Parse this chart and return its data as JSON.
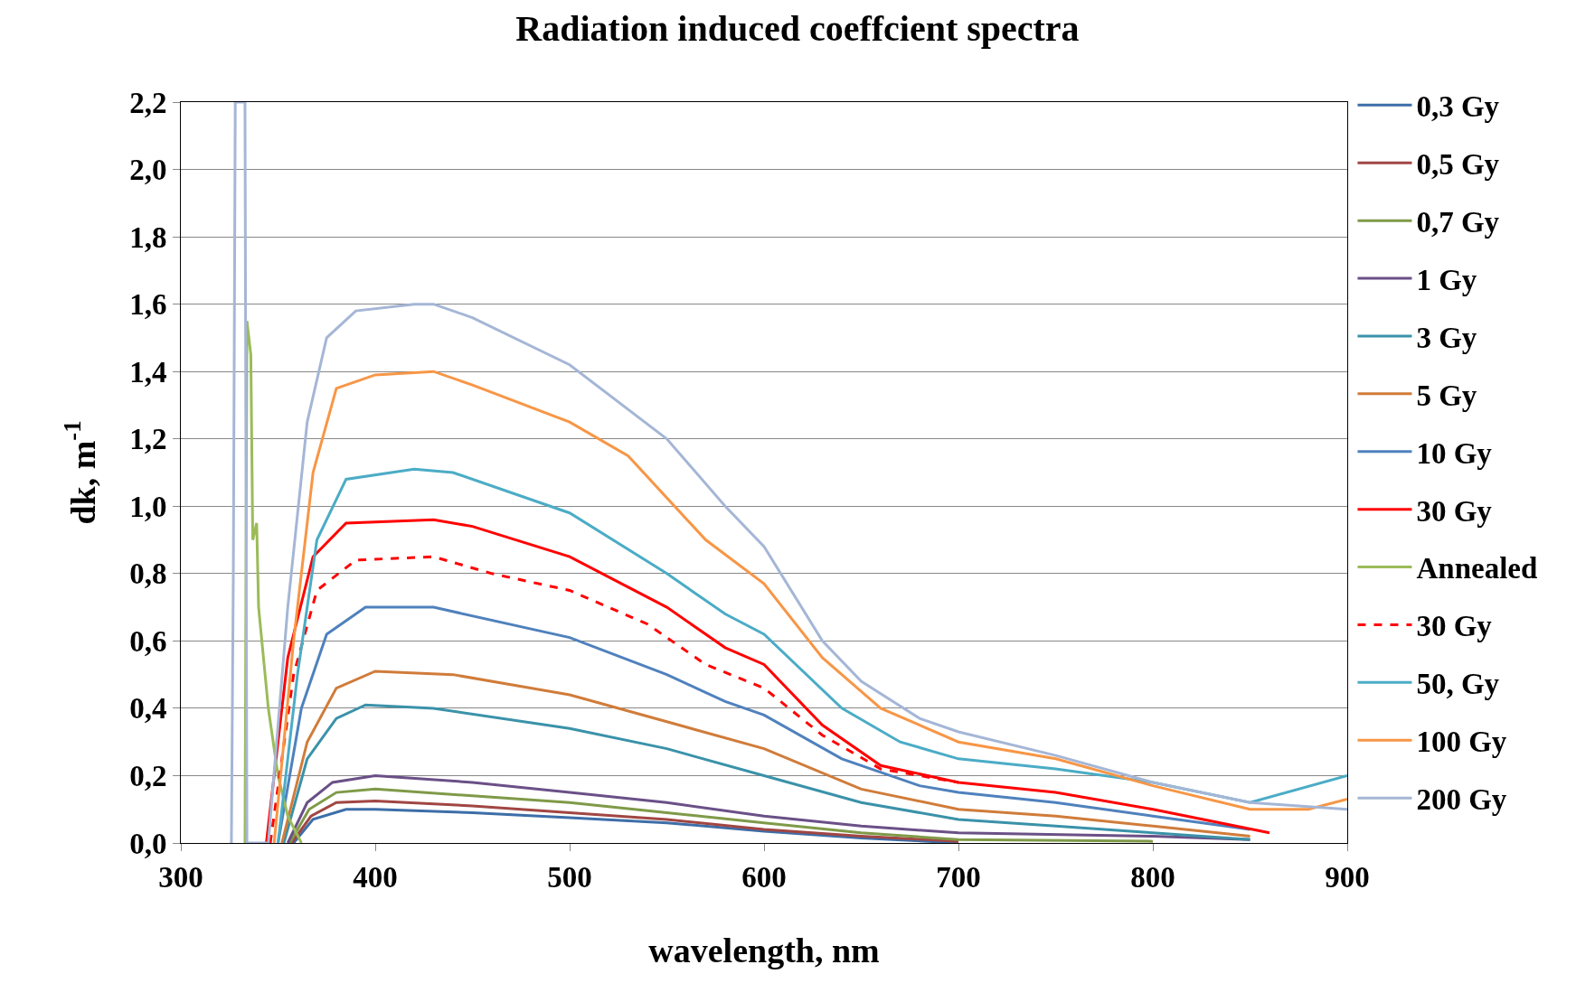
{
  "chart_data": {
    "type": "line",
    "title": "Radiation induced coeffcient spectra",
    "xlabel": "wavelength, nm",
    "ylabel": "dk, m$^{-1}$",
    "xlim": [
      300,
      900
    ],
    "xticks": [
      300,
      400,
      500,
      600,
      700,
      800,
      900
    ],
    "ylim": [
      0,
      2.2
    ],
    "yticks": [
      {
        "value": 0,
        "label": "0,0"
      },
      {
        "value": 0.2,
        "label": "0,2"
      },
      {
        "value": 0.4,
        "label": "0,4"
      },
      {
        "value": 0.6,
        "label": "0,6"
      },
      {
        "value": 0.8,
        "label": "0,8"
      },
      {
        "value": 1.0,
        "label": "1,0"
      },
      {
        "value": 1.2,
        "label": "1,2"
      },
      {
        "value": 1.4,
        "label": "1,4"
      },
      {
        "value": 1.6,
        "label": "1,6"
      },
      {
        "value": 1.8,
        "label": "1,8"
      },
      {
        "value": 2.0,
        "label": "2,0"
      },
      {
        "value": 2.2,
        "label": "2,2"
      }
    ],
    "grid": "y",
    "legend": "right",
    "line_style": "solid",
    "series": [
      {
        "name": "0,3 Gy",
        "color": "#3d6ea8",
        "x": [
          358,
          368,
          385,
          400,
          450,
          500,
          550,
          600,
          650,
          700
        ],
        "values": [
          0,
          0.07,
          0.1,
          0.1,
          0.09,
          0.075,
          0.06,
          0.035,
          0.015,
          0
        ]
      },
      {
        "name": "0,5 Gy",
        "color": "#a14643",
        "x": [
          357,
          367,
          380,
          400,
          450,
          500,
          550,
          600,
          650,
          700
        ],
        "values": [
          0,
          0.08,
          0.12,
          0.125,
          0.11,
          0.09,
          0.07,
          0.04,
          0.02,
          0.005
        ]
      },
      {
        "name": "0,7 Gy",
        "color": "#7f9a48",
        "x": [
          356,
          366,
          380,
          400,
          450,
          500,
          550,
          600,
          650,
          700,
          800
        ],
        "values": [
          0,
          0.1,
          0.15,
          0.16,
          0.14,
          0.12,
          0.09,
          0.06,
          0.03,
          0.01,
          0.005
        ]
      },
      {
        "name": "1 Gy",
        "color": "#6a5087",
        "x": [
          355,
          365,
          378,
          400,
          450,
          500,
          550,
          600,
          650,
          700,
          800,
          850
        ],
        "values": [
          0,
          0.12,
          0.18,
          0.2,
          0.18,
          0.15,
          0.12,
          0.08,
          0.05,
          0.03,
          0.02,
          0.01
        ]
      },
      {
        "name": "3 Gy",
        "color": "#3a92a9",
        "x": [
          353,
          365,
          380,
          395,
          430,
          500,
          550,
          600,
          650,
          700,
          750,
          800,
          850
        ],
        "values": [
          0,
          0.25,
          0.37,
          0.41,
          0.4,
          0.34,
          0.28,
          0.2,
          0.12,
          0.07,
          0.05,
          0.03,
          0.01
        ]
      },
      {
        "name": "5 Gy",
        "color": "#d07c3a",
        "x": [
          352,
          365,
          380,
          400,
          440,
          500,
          550,
          600,
          650,
          700,
          750,
          800,
          850
        ],
        "values": [
          0,
          0.3,
          0.46,
          0.51,
          0.5,
          0.44,
          0.36,
          0.28,
          0.16,
          0.1,
          0.08,
          0.05,
          0.02
        ]
      },
      {
        "name": "10 Gy",
        "color": "#4f81bd",
        "x": [
          350,
          362,
          375,
          395,
          430,
          500,
          550,
          580,
          600,
          640,
          680,
          700,
          750,
          800,
          850
        ],
        "values": [
          0,
          0.4,
          0.62,
          0.7,
          0.7,
          0.61,
          0.5,
          0.42,
          0.38,
          0.25,
          0.17,
          0.15,
          0.12,
          0.08,
          0.04
        ]
      },
      {
        "name": "30 Gy",
        "color": "#ff0000",
        "x": [
          344,
          355,
          368,
          385,
          430,
          450,
          500,
          550,
          580,
          600,
          630,
          660,
          700,
          750,
          800,
          860
        ],
        "values": [
          0,
          0.55,
          0.85,
          0.95,
          0.96,
          0.94,
          0.85,
          0.7,
          0.58,
          0.53,
          0.35,
          0.23,
          0.18,
          0.15,
          0.1,
          0.03
        ]
      },
      {
        "name": "Annealed",
        "color": "#9bbb59",
        "x": [
          333,
          334,
          336,
          337,
          339,
          340,
          345,
          350,
          355,
          362
        ],
        "values": [
          0,
          1.55,
          1.45,
          0.9,
          0.95,
          0.7,
          0.4,
          0.2,
          0.08,
          0
        ]
      },
      {
        "name": "30 Gy",
        "color": "#ff0000",
        "line_style": "dashed",
        "x": [
          346,
          358,
          370,
          390,
          430,
          460,
          500,
          540,
          570,
          600,
          630,
          660,
          700
        ],
        "values": [
          0,
          0.5,
          0.75,
          0.84,
          0.85,
          0.8,
          0.75,
          0.65,
          0.53,
          0.46,
          0.32,
          0.22,
          0.18
        ]
      },
      {
        "name": "50, Gy",
        "color": "#4bacc6",
        "x": [
          350,
          360,
          370,
          385,
          420,
          440,
          500,
          550,
          580,
          600,
          640,
          670,
          700,
          750,
          800,
          850,
          900
        ],
        "values": [
          0,
          0.5,
          0.9,
          1.08,
          1.11,
          1.1,
          0.98,
          0.8,
          0.68,
          0.62,
          0.4,
          0.3,
          0.25,
          0.22,
          0.18,
          0.12,
          0.2
        ]
      },
      {
        "name": "100 Gy",
        "color": "#f79646",
        "x": [
          348,
          358,
          368,
          380,
          400,
          430,
          450,
          500,
          530,
          570,
          600,
          630,
          660,
          700,
          750,
          800,
          850,
          880,
          900
        ],
        "values": [
          0,
          0.6,
          1.1,
          1.35,
          1.39,
          1.4,
          1.36,
          1.25,
          1.15,
          0.9,
          0.77,
          0.55,
          0.4,
          0.3,
          0.25,
          0.17,
          0.1,
          0.1,
          0.13
        ]
      },
      {
        "name": "200 Gy",
        "color": "#a5b6d6",
        "x": [
          326,
          327,
          328,
          333,
          334,
          345,
          355,
          365,
          375,
          390,
          420,
          430,
          450,
          500,
          550,
          580,
          600,
          630,
          650,
          680,
          700,
          750,
          800,
          850,
          900
        ],
        "values": [
          0,
          0.8,
          2.2,
          2.2,
          0,
          0,
          0.7,
          1.25,
          1.5,
          1.58,
          1.6,
          1.6,
          1.56,
          1.42,
          1.2,
          1.0,
          0.88,
          0.6,
          0.48,
          0.37,
          0.33,
          0.26,
          0.18,
          0.12,
          0.1
        ]
      }
    ]
  }
}
